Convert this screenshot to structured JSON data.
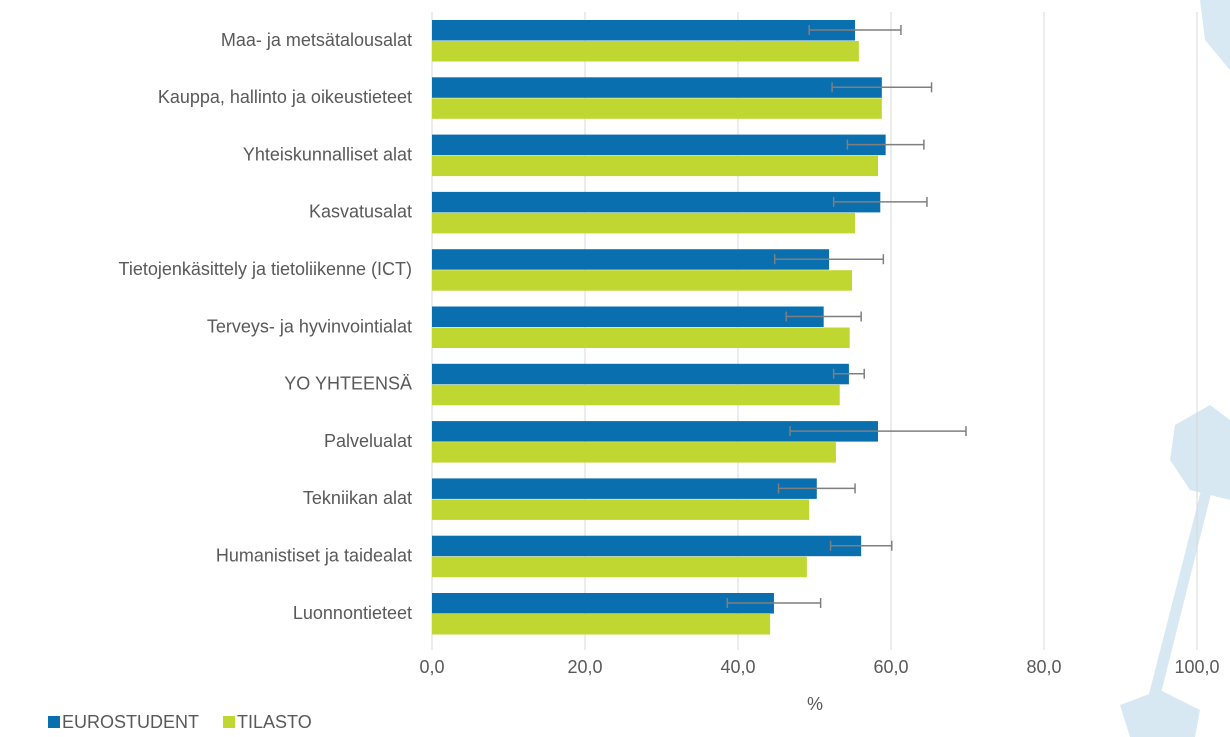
{
  "chart_data": {
    "type": "bar",
    "orientation": "horizontal",
    "categories": [
      "Maa- ja metsätalousalat",
      "Kauppa, hallinto ja oikeustieteet",
      "Yhteiskunnalliset alat",
      "Kasvatusalat",
      "Tietojenkäsittely ja tietoliikenne (ICT)",
      "Terveys- ja hyvinvointialat",
      "YO YHTEENSÄ",
      "Palvelualat",
      "Tekniikan alat",
      "Humanistiset ja taidealat",
      "Luonnontieteet"
    ],
    "series": [
      {
        "name": "EUROSTUDENT",
        "color": "#0a6fae",
        "values": [
          55.3,
          58.8,
          59.3,
          58.6,
          51.9,
          51.2,
          54.5,
          58.3,
          50.3,
          56.1,
          44.7
        ],
        "errors": [
          6.0,
          6.5,
          5.0,
          6.1,
          7.1,
          4.9,
          2.0,
          11.5,
          5.0,
          4.0,
          6.1
        ]
      },
      {
        "name": "TILASTO",
        "color": "#bfd730",
        "values": [
          55.8,
          58.8,
          58.3,
          55.3,
          54.9,
          54.6,
          53.3,
          52.8,
          49.3,
          49.0,
          44.2
        ]
      }
    ],
    "xlabel": "%",
    "xlim": [
      0,
      100
    ],
    "xticks": [
      {
        "value": 0,
        "label": "0,0"
      },
      {
        "value": 20,
        "label": "20,0"
      },
      {
        "value": 40,
        "label": "40,0"
      },
      {
        "value": 60,
        "label": "60,0"
      },
      {
        "value": 80,
        "label": "80,0"
      },
      {
        "value": 100,
        "label": "100,0"
      }
    ],
    "grid": true
  }
}
